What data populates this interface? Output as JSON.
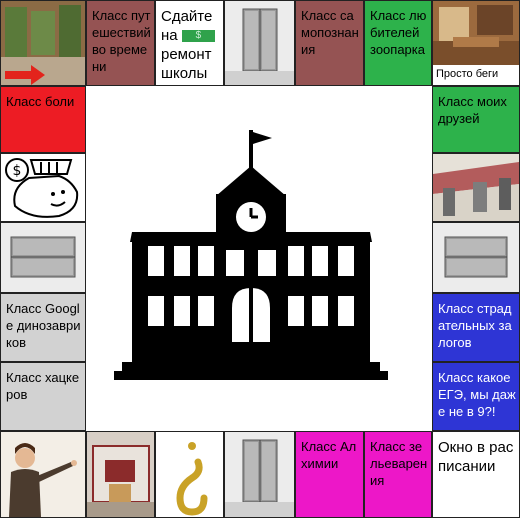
{
  "colors": {
    "brown": "#955353",
    "green": "#2db24b",
    "red": "#ed1c24",
    "blue": "#2e35d5",
    "magenta": "#ed17c8",
    "grey": "#d2d2d2",
    "white": "#ffffff"
  },
  "top_row": {
    "time_travel": "Класс путешествий во времени",
    "repair_1": "Сдайте на",
    "repair_money": "$",
    "repair_2": "ремонт школы",
    "self_knowledge": "Класс самопознания",
    "zoo_lovers": "Класс любителей зоопарка",
    "just_run": "Просто беги"
  },
  "left_column": {
    "pain": "Класс боли",
    "google_dino": "Класс Google динозавриков",
    "hackers": "Класс хацкеров"
  },
  "right_column": {
    "my_friends": "Класс моих друзей",
    "suffering": "Класс страдательных залогов",
    "ege": "Класс какое ЕГЭ, мы даже не в 9?!"
  },
  "bottom_row": {
    "alchemy": "Класс Алхимии",
    "potions": "Класс зельеварения",
    "window": "Окно в расписании"
  },
  "center": {
    "icon": "school-building-icon"
  }
}
